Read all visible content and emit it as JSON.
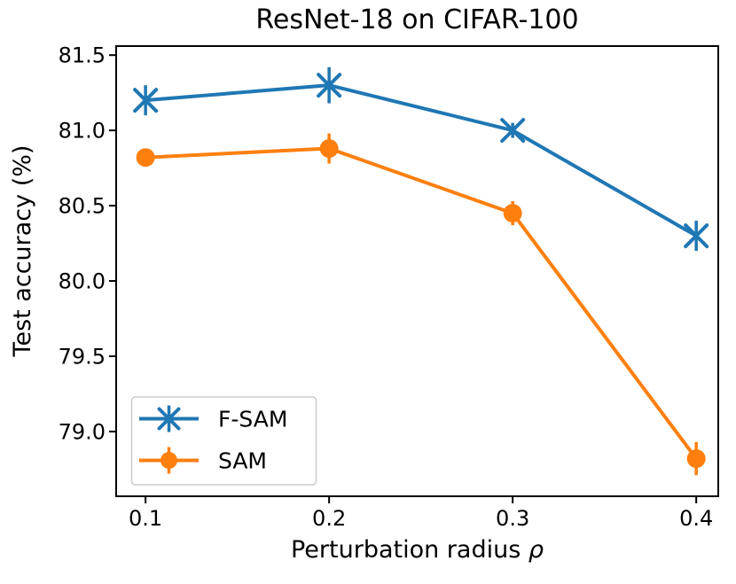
{
  "chart_data": {
    "type": "line",
    "title": "ResNet-18 on CIFAR-100",
    "xlabel": "Perturbation radius ρ",
    "ylabel": "Test accuracy (%)",
    "x": [
      0.1,
      0.2,
      0.3,
      0.4
    ],
    "series": [
      {
        "name": "F-SAM",
        "color": "#1f77b4",
        "marker": "x",
        "values": [
          81.2,
          81.3,
          81.0,
          80.3
        ],
        "yerr": [
          0.1,
          0.12,
          0.05,
          0.1
        ]
      },
      {
        "name": "SAM",
        "color": "#ff7f0e",
        "marker": "o",
        "values": [
          80.82,
          80.88,
          80.45,
          78.82
        ],
        "yerr": [
          0.04,
          0.1,
          0.08,
          0.11
        ]
      }
    ],
    "xticks": [
      0.1,
      0.2,
      0.3,
      0.4
    ],
    "xtick_labels": [
      "0.1",
      "0.2",
      "0.3",
      "0.4"
    ],
    "yticks": [
      79.0,
      79.5,
      80.0,
      80.5,
      81.0,
      81.5
    ],
    "ytick_labels": [
      "79.0",
      "79.5",
      "80.0",
      "80.5",
      "81.0",
      "81.5"
    ],
    "xlim": [
      0.084,
      0.412
    ],
    "ylim": [
      78.57,
      81.56
    ],
    "grid": false,
    "legend_position": "lower left",
    "axis_color": "#000000",
    "background": "#ffffff",
    "error_bar_caps": false
  }
}
